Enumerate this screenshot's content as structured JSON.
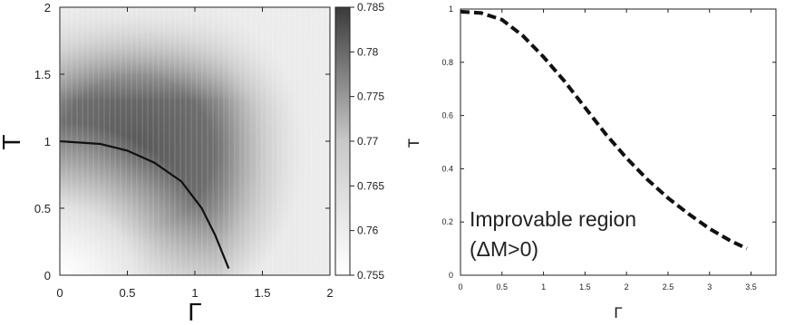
{
  "chart_data": [
    {
      "type": "heatmap",
      "xlabel": "Γ",
      "ylabel": "T",
      "xlim": [
        0,
        2
      ],
      "ylim": [
        0,
        2
      ],
      "x_ticks": [
        "0",
        "0.5",
        "1",
        "1.5",
        "2"
      ],
      "y_ticks": [
        "0",
        "0.5",
        "1",
        "1.5",
        "2"
      ],
      "colorbar": {
        "range": [
          0.755,
          0.785
        ],
        "ticks": [
          "0.755",
          "0.76",
          "0.765",
          "0.77",
          "0.775",
          "0.78",
          "0.785"
        ],
        "colormap": "grayscale (white = low, dark = high)"
      },
      "contour_line": {
        "style": "solid black",
        "points": [
          {
            "x": 0,
            "y": 1.0
          },
          {
            "x": 0.3,
            "y": 0.98
          },
          {
            "x": 0.5,
            "y": 0.93
          },
          {
            "x": 0.7,
            "y": 0.84
          },
          {
            "x": 0.9,
            "y": 0.7
          },
          {
            "x": 1.05,
            "y": 0.5
          },
          {
            "x": 1.15,
            "y": 0.3
          },
          {
            "x": 1.25,
            "y": 0.05
          }
        ]
      }
    },
    {
      "type": "line",
      "xlabel": "Γ",
      "ylabel": "T",
      "xlim": [
        0,
        3.8
      ],
      "ylim": [
        0,
        1
      ],
      "x_ticks": [
        "0",
        "0.5",
        "1",
        "1.5",
        "2",
        "2.5",
        "3",
        "3.5"
      ],
      "y_ticks": [
        "0",
        "0.2",
        "0.4",
        "0.6",
        "0.8",
        "1"
      ],
      "series": [
        {
          "style": "dashed black",
          "points": [
            {
              "x": 0,
              "y": 0.99
            },
            {
              "x": 0.25,
              "y": 0.985
            },
            {
              "x": 0.5,
              "y": 0.96
            },
            {
              "x": 0.75,
              "y": 0.9
            },
            {
              "x": 1.0,
              "y": 0.82
            },
            {
              "x": 1.25,
              "y": 0.73
            },
            {
              "x": 1.5,
              "y": 0.63
            },
            {
              "x": 1.75,
              "y": 0.53
            },
            {
              "x": 2.0,
              "y": 0.44
            },
            {
              "x": 2.25,
              "y": 0.36
            },
            {
              "x": 2.5,
              "y": 0.29
            },
            {
              "x": 2.75,
              "y": 0.23
            },
            {
              "x": 3.0,
              "y": 0.175
            },
            {
              "x": 3.25,
              "y": 0.13
            },
            {
              "x": 3.45,
              "y": 0.1
            }
          ]
        }
      ],
      "annotation": [
        "Improvable region",
        "(ΔM>0)"
      ]
    }
  ]
}
